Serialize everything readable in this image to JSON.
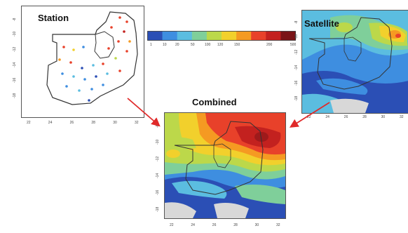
{
  "panels": {
    "station": {
      "title": "Station"
    },
    "satellite": {
      "title": "Satellite"
    },
    "combined": {
      "title": "Combined"
    }
  },
  "axes": {
    "x_ticks": [
      "22",
      "24",
      "26",
      "28",
      "30",
      "32"
    ],
    "y_ticks": [
      "-8",
      "-10",
      "-12",
      "-14",
      "-16",
      "-18"
    ]
  },
  "legend": {
    "ticks": [
      "1",
      "10",
      "20",
      "50",
      "100",
      "120",
      "150",
      "200",
      "500"
    ],
    "colors": [
      "#2b4fb5",
      "#3e8ee0",
      "#5bbde0",
      "#7fcf9a",
      "#bcd84a",
      "#f2d02c",
      "#f59a22",
      "#e8412a",
      "#c3211f",
      "#7a1417"
    ]
  },
  "arrow_color": "#e02a2a"
}
